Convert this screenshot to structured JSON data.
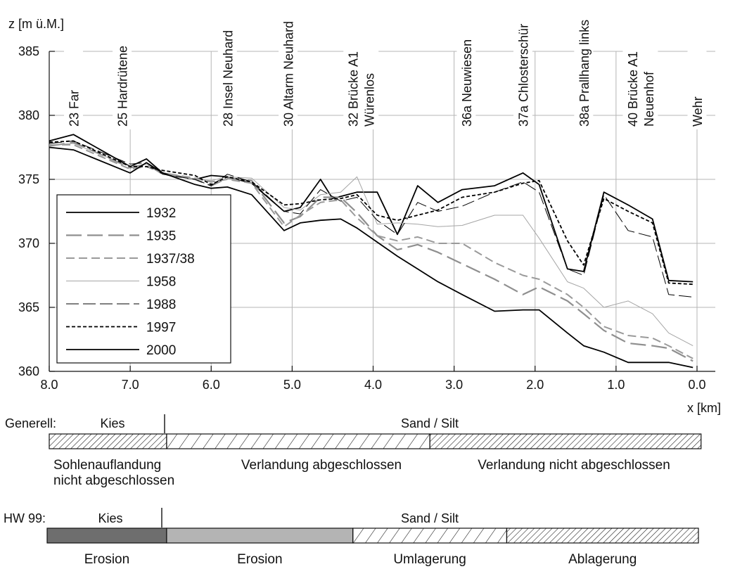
{
  "chart_data": {
    "type": "line",
    "ylabel": "z [m ü.M.]",
    "xlabel": "x [km]",
    "xlim": [
      8.0,
      0.0
    ],
    "ylim": [
      360,
      385
    ],
    "x_reversed": true,
    "grid": true,
    "x_ticks": [
      8.0,
      7.0,
      6.0,
      5.0,
      4.0,
      3.0,
      2.0,
      1.0,
      0.0
    ],
    "x_tick_labels": [
      "8.0",
      "7.0",
      "6.0",
      "5.0",
      "4.0",
      "3.0",
      "2.0",
      "1.0",
      "0.0"
    ],
    "y_ticks": [
      360,
      365,
      370,
      375,
      380,
      385
    ],
    "y_tick_labels": [
      "360",
      "365",
      "370",
      "375",
      "380",
      "385"
    ],
    "legend_placement": "lower-left",
    "cross_sections": [
      {
        "x": 7.7,
        "label": "23 Far"
      },
      {
        "x": 7.1,
        "label": "25 Hardrütene"
      },
      {
        "x": 5.8,
        "label": "28 Insel Neuhard"
      },
      {
        "x": 5.05,
        "label": "30 Altarm Neuhard"
      },
      {
        "x": 4.15,
        "label": "32 Brücke A1 Würenlos"
      },
      {
        "x": 2.85,
        "label": "36a Neuwiesen"
      },
      {
        "x": 2.15,
        "label": "37a Chlosterschür"
      },
      {
        "x": 1.4,
        "label": "38a Prallhang links"
      },
      {
        "x": 0.7,
        "label": "40 Brücke A1 Neuenhof"
      },
      {
        "x": 0.0,
        "label": "Wehr"
      }
    ],
    "series": [
      {
        "name": "1932",
        "style": "solid",
        "color": "#000000",
        "x": [
          8.0,
          7.7,
          7.0,
          6.8,
          6.6,
          6.2,
          6.0,
          5.8,
          5.5,
          5.1,
          4.9,
          4.65,
          4.5,
          4.2,
          3.95,
          3.7,
          3.45,
          3.2,
          2.9,
          2.5,
          2.15,
          1.95,
          1.6,
          1.4,
          1.15,
          0.85,
          0.55,
          0.35,
          0.05
        ],
        "y": [
          378.0,
          378.5,
          376.0,
          376.6,
          375.5,
          375.0,
          375.3,
          375.2,
          374.7,
          372.5,
          372.8,
          375.0,
          373.5,
          374.0,
          374.0,
          370.7,
          374.5,
          373.2,
          374.2,
          374.5,
          375.5,
          374.6,
          368.0,
          367.8,
          374.0,
          373.0,
          371.9,
          367.1,
          367.0
        ]
      },
      {
        "name": "1935",
        "style": "long-dash",
        "color": "#999999",
        "x": [
          8.0,
          7.7,
          7.0,
          6.8,
          6.6,
          6.2,
          6.0,
          5.8,
          5.5,
          5.1,
          4.9,
          4.65,
          4.4,
          4.2,
          3.95,
          3.7,
          3.45,
          3.2,
          2.9,
          2.5,
          2.15,
          1.95,
          1.6,
          1.4,
          1.15,
          0.85,
          0.55,
          0.35,
          0.05
        ],
        "y": [
          377.6,
          377.9,
          375.9,
          376.2,
          375.4,
          375.0,
          374.5,
          375.1,
          374.9,
          371.6,
          372.1,
          373.6,
          373.6,
          372.4,
          370.6,
          369.5,
          369.9,
          369.3,
          368.4,
          367.2,
          366.0,
          366.6,
          365.5,
          364.5,
          363.2,
          362.2,
          362.0,
          361.8,
          360.8
        ]
      },
      {
        "name": "1937/38",
        "style": "medium-dash",
        "color": "#999999",
        "x": [
          8.0,
          7.7,
          7.0,
          6.8,
          6.6,
          6.2,
          6.0,
          5.8,
          5.5,
          5.1,
          4.9,
          4.65,
          4.4,
          4.2,
          3.95,
          3.7,
          3.45,
          3.2,
          2.9,
          2.5,
          2.15,
          1.95,
          1.6,
          1.4,
          1.15,
          0.85,
          0.55,
          0.35,
          0.05
        ],
        "y": [
          377.7,
          377.7,
          375.8,
          376.0,
          375.5,
          375.1,
          374.8,
          375.0,
          374.7,
          371.3,
          372.2,
          373.2,
          373.4,
          372.0,
          370.6,
          370.2,
          370.5,
          370.0,
          370.0,
          368.5,
          367.5,
          367.2,
          366.0,
          365.0,
          363.5,
          362.8,
          362.6,
          362.0,
          361.0
        ]
      },
      {
        "name": "1958",
        "style": "thin",
        "color": "#999999",
        "x": [
          8.0,
          7.7,
          7.0,
          6.8,
          6.6,
          6.2,
          6.0,
          5.8,
          5.5,
          5.1,
          4.9,
          4.65,
          4.4,
          4.2,
          3.95,
          3.7,
          3.45,
          3.2,
          2.9,
          2.5,
          2.15,
          1.95,
          1.6,
          1.4,
          1.15,
          0.85,
          0.55,
          0.35,
          0.05
        ],
        "y": [
          377.7,
          377.8,
          376.0,
          376.2,
          375.5,
          375.0,
          374.9,
          375.2,
          375.1,
          372.8,
          372.6,
          373.8,
          374.0,
          375.2,
          371.5,
          371.6,
          371.5,
          371.3,
          371.4,
          372.2,
          372.2,
          370.4,
          367.0,
          366.5,
          365.0,
          365.5,
          364.5,
          363.0,
          362.0
        ]
      },
      {
        "name": "1988",
        "style": "dash-thin",
        "color": "#000000",
        "x": [
          8.0,
          7.7,
          7.0,
          6.8,
          6.6,
          6.2,
          6.0,
          5.8,
          5.5,
          5.1,
          4.9,
          4.65,
          4.4,
          4.2,
          3.95,
          3.7,
          3.45,
          3.2,
          2.9,
          2.5,
          2.15,
          1.95,
          1.6,
          1.4,
          1.15,
          0.85,
          0.55,
          0.35,
          0.05
        ],
        "y": [
          377.8,
          378.0,
          376.2,
          376.3,
          375.4,
          375.0,
          374.5,
          375.4,
          374.8,
          372.5,
          372.3,
          374.2,
          373.3,
          373.6,
          371.8,
          370.7,
          373.2,
          372.5,
          372.9,
          374.0,
          374.8,
          374.0,
          368.0,
          367.5,
          373.8,
          371.0,
          370.5,
          366.0,
          365.8
        ]
      },
      {
        "name": "1997",
        "style": "short-dash",
        "color": "#000000",
        "x": [
          8.0,
          7.7,
          7.0,
          6.8,
          6.6,
          6.2,
          6.0,
          5.8,
          5.5,
          5.1,
          4.9,
          4.65,
          4.4,
          4.2,
          3.95,
          3.7,
          3.45,
          3.2,
          2.9,
          2.5,
          2.15,
          1.95,
          1.6,
          1.4,
          1.15,
          0.85,
          0.55,
          0.35,
          0.05
        ],
        "y": [
          377.9,
          378.0,
          376.0,
          376.0,
          375.7,
          375.3,
          374.6,
          375.2,
          374.8,
          373.0,
          373.1,
          373.4,
          373.5,
          373.8,
          372.2,
          371.8,
          372.2,
          372.6,
          373.6,
          374.0,
          374.7,
          374.9,
          370.2,
          368.3,
          373.5,
          372.5,
          371.6,
          366.9,
          366.8
        ]
      },
      {
        "name": "2000",
        "style": "solid",
        "color": "#000000",
        "x": [
          8.0,
          7.7,
          7.0,
          6.8,
          6.6,
          6.2,
          6.0,
          5.8,
          5.5,
          5.1,
          4.9,
          4.65,
          4.4,
          4.2,
          3.95,
          3.7,
          3.45,
          3.2,
          2.9,
          2.5,
          2.15,
          1.95,
          1.6,
          1.4,
          1.15,
          0.85,
          0.55,
          0.35,
          0.05
        ],
        "y": [
          377.5,
          377.3,
          375.5,
          376.3,
          375.5,
          374.6,
          374.3,
          374.4,
          373.8,
          371.0,
          371.6,
          371.8,
          371.9,
          371.2,
          370.1,
          369.0,
          368.0,
          367.0,
          366.0,
          364.7,
          364.8,
          364.8,
          363.0,
          362.0,
          361.5,
          360.7,
          360.7,
          360.7,
          360.3
        ]
      }
    ]
  },
  "bands": [
    {
      "name": "generell",
      "label": "Generell:",
      "material_left": "Kies",
      "material_right": "Sand / Silt",
      "segments": [
        {
          "from_x": 8.0,
          "to_x": 6.55,
          "fill": "dense-hatch",
          "label": ""
        },
        {
          "from_x": 6.55,
          "to_x": 3.3,
          "fill": "sparse-hatch",
          "label": ""
        },
        {
          "from_x": 3.3,
          "to_x": -0.05,
          "fill": "dense-hatch",
          "label": ""
        }
      ],
      "annotations": [
        "Sohlenauflandung",
        "nicht abgeschlossen",
        "Verlandung abgeschlossen",
        "Verlandung nicht abgeschlossen"
      ]
    },
    {
      "name": "hw99",
      "label": "HW 99:",
      "material_left": "Kies",
      "material_right": "Sand / Silt",
      "segments": [
        {
          "from_x": 8.0,
          "to_x": 6.55,
          "fill": "#6e6e6e",
          "label": "Erosion"
        },
        {
          "from_x": 6.55,
          "to_x": 4.25,
          "fill": "#b4b4b4",
          "label": "Erosion"
        },
        {
          "from_x": 4.25,
          "to_x": 2.35,
          "fill": "sparse-hatch",
          "label": "Umlagerung"
        },
        {
          "from_x": 2.35,
          "to_x": -0.05,
          "fill": "dense-hatch",
          "label": "Ablagerung"
        }
      ]
    }
  ]
}
